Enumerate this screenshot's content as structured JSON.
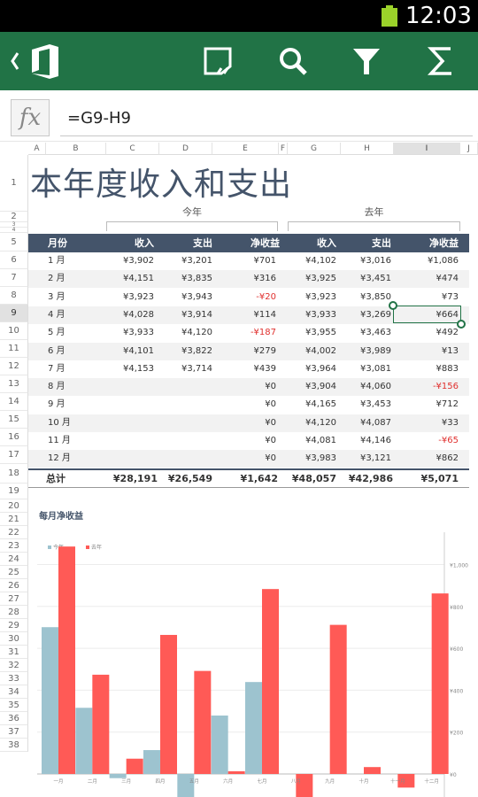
{
  "status_bar": {
    "time": "12:03"
  },
  "toolbar": {
    "back_icon": "chevron-left-icon",
    "app_icon": "office-icon",
    "actions": [
      "comment-icon",
      "search-icon",
      "filter-icon",
      "sum-icon"
    ]
  },
  "formula_bar": {
    "fx_label": "fx",
    "formula": "=G9-H9"
  },
  "columns": [
    "A",
    "B",
    "C",
    "D",
    "E",
    "F",
    "G",
    "H",
    "I",
    "J"
  ],
  "selected_column": "I",
  "rows": [
    "1",
    "2",
    "3",
    "4",
    "5",
    "6",
    "7",
    "8",
    "9",
    "10",
    "11",
    "12",
    "13",
    "14",
    "15",
    "16",
    "17",
    "18",
    "19",
    "20",
    "21",
    "22",
    "23",
    "24",
    "25",
    "26",
    "27",
    "28",
    "29",
    "30",
    "31",
    "32",
    "33",
    "34",
    "35",
    "36",
    "37",
    "38"
  ],
  "selected_row": "9",
  "sheet": {
    "title": "本年度收入和支出",
    "this_year_label": "今年",
    "last_year_label": "去年",
    "headers": [
      "月份",
      "收入",
      "支出",
      "净收益",
      "收入",
      "支出",
      "净收益"
    ],
    "months": [
      [
        "1 月",
        "¥3,902",
        "¥3,201",
        "¥701",
        "¥4,102",
        "¥3,016",
        "¥1,086"
      ],
      [
        "2 月",
        "¥4,151",
        "¥3,835",
        "¥316",
        "¥3,925",
        "¥3,451",
        "¥474"
      ],
      [
        "3 月",
        "¥3,923",
        "¥3,943",
        "-¥20",
        "¥3,923",
        "¥3,850",
        "¥73"
      ],
      [
        "4 月",
        "¥4,028",
        "¥3,914",
        "¥114",
        "¥3,933",
        "¥3,269",
        "¥664"
      ],
      [
        "5 月",
        "¥3,933",
        "¥4,120",
        "-¥187",
        "¥3,955",
        "¥3,463",
        "¥492"
      ],
      [
        "6 月",
        "¥4,101",
        "¥3,822",
        "¥279",
        "¥4,002",
        "¥3,989",
        "¥13"
      ],
      [
        "7 月",
        "¥4,153",
        "¥3,714",
        "¥439",
        "¥3,964",
        "¥3,081",
        "¥883"
      ],
      [
        "8 月",
        "",
        "",
        "¥0",
        "¥3,904",
        "¥4,060",
        "-¥156"
      ],
      [
        "9 月",
        "",
        "",
        "¥0",
        "¥4,165",
        "¥3,453",
        "¥712"
      ],
      [
        "10 月",
        "",
        "",
        "¥0",
        "¥4,120",
        "¥4,087",
        "¥33"
      ],
      [
        "11 月",
        "",
        "",
        "¥0",
        "¥4,081",
        "¥4,146",
        "-¥65"
      ],
      [
        "12 月",
        "",
        "",
        "¥0",
        "¥3,983",
        "¥3,121",
        "¥862"
      ]
    ],
    "total": [
      "总计",
      "¥28,191",
      "¥26,549",
      "¥1,642",
      "¥48,057",
      "¥42,986",
      "¥5,071"
    ]
  },
  "colors": {
    "toolbar": "#217346",
    "header": "#44546a",
    "negative": "#e0302e",
    "this_year": "#9dc3cf",
    "last_year": "#ff5a56"
  },
  "chart_data": {
    "type": "bar",
    "title": "每月净收益",
    "categories": [
      "一月",
      "二月",
      "三月",
      "四月",
      "五月",
      "六月",
      "七月",
      "八月",
      "九月",
      "十月",
      "十一月",
      "十二月"
    ],
    "series": [
      {
        "name": "今年",
        "values": [
          701,
          316,
          -20,
          114,
          -187,
          279,
          439,
          0,
          0,
          0,
          0,
          0
        ]
      },
      {
        "name": "去年",
        "values": [
          1086,
          474,
          73,
          664,
          492,
          13,
          883,
          -156,
          712,
          33,
          -65,
          862
        ]
      }
    ],
    "ylim": [
      -100,
      1000
    ],
    "yticks": [
      "¥0",
      "¥200",
      "¥400",
      "¥600",
      "¥800",
      "¥1,000"
    ],
    "y_axis_position": "right",
    "legend_position": "top-left"
  }
}
